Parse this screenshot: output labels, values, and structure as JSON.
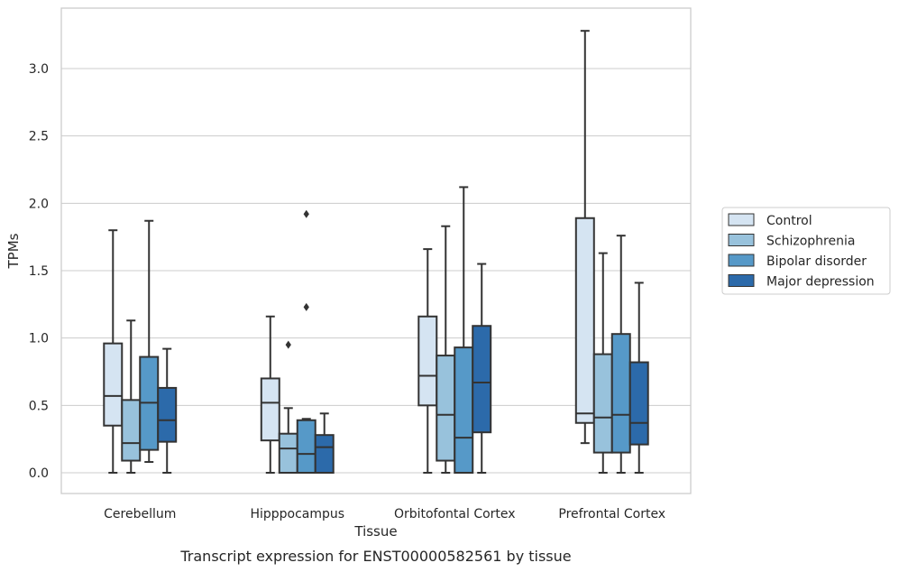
{
  "chart_data": {
    "type": "box",
    "title": "",
    "xlabel": "Tissue",
    "ylabel": "TPMs",
    "caption": "Transcript expression for ENST00000582561 by tissue",
    "ylim": [
      -0.16,
      3.46
    ],
    "yticks": [
      "0.0",
      "0.5",
      "1.0",
      "1.5",
      "2.0",
      "2.5",
      "3.0"
    ],
    "grid": true,
    "legend_position": "right-outside",
    "categories": [
      "Cerebellum",
      "Hipppocampus",
      "Orbitofontal Cortex",
      "Prefrontal Cortex"
    ],
    "series": [
      {
        "name": "Control",
        "color": "#d5e4f2",
        "boxes": [
          {
            "whislo": 0.0,
            "q1": 0.35,
            "med": 0.57,
            "q3": 0.96,
            "whishi": 1.8,
            "fliers": []
          },
          {
            "whislo": 0.0,
            "q1": 0.24,
            "med": 0.52,
            "q3": 0.7,
            "whishi": 1.16,
            "fliers": []
          },
          {
            "whislo": 0.0,
            "q1": 0.5,
            "med": 0.72,
            "q3": 1.16,
            "whishi": 1.66,
            "fliers": []
          },
          {
            "whislo": 0.22,
            "q1": 0.37,
            "med": 0.44,
            "q3": 1.89,
            "whishi": 3.28,
            "fliers": []
          }
        ]
      },
      {
        "name": "Schizophrenia",
        "color": "#98c2dc",
        "boxes": [
          {
            "whislo": 0.0,
            "q1": 0.09,
            "med": 0.22,
            "q3": 0.54,
            "whishi": 1.13,
            "fliers": []
          },
          {
            "whislo": 0.0,
            "q1": 0.0,
            "med": 0.18,
            "q3": 0.29,
            "whishi": 0.48,
            "fliers": [
              0.95
            ]
          },
          {
            "whislo": 0.0,
            "q1": 0.09,
            "med": 0.43,
            "q3": 0.87,
            "whishi": 1.83,
            "fliers": []
          },
          {
            "whislo": 0.0,
            "q1": 0.15,
            "med": 0.41,
            "q3": 0.88,
            "whishi": 1.63,
            "fliers": []
          }
        ]
      },
      {
        "name": "Bipolar disorder",
        "color": "#5699c8",
        "boxes": [
          {
            "whislo": 0.08,
            "q1": 0.17,
            "med": 0.52,
            "q3": 0.86,
            "whishi": 1.87,
            "fliers": []
          },
          {
            "whislo": 0.0,
            "q1": 0.0,
            "med": 0.14,
            "q3": 0.39,
            "whishi": 0.4,
            "fliers": [
              1.23,
              1.92
            ]
          },
          {
            "whislo": 0.0,
            "q1": 0.0,
            "med": 0.26,
            "q3": 0.93,
            "whishi": 2.12,
            "fliers": []
          },
          {
            "whislo": 0.0,
            "q1": 0.15,
            "med": 0.43,
            "q3": 1.03,
            "whishi": 1.76,
            "fliers": []
          }
        ]
      },
      {
        "name": "Major depression",
        "color": "#2c6aaa",
        "boxes": [
          {
            "whislo": 0.0,
            "q1": 0.23,
            "med": 0.39,
            "q3": 0.63,
            "whishi": 0.92,
            "fliers": []
          },
          {
            "whislo": 0.0,
            "q1": 0.0,
            "med": 0.19,
            "q3": 0.28,
            "whishi": 0.44,
            "fliers": []
          },
          {
            "whislo": 0.0,
            "q1": 0.3,
            "med": 0.67,
            "q3": 1.09,
            "whishi": 1.55,
            "fliers": []
          },
          {
            "whislo": 0.0,
            "q1": 0.21,
            "med": 0.37,
            "q3": 0.82,
            "whishi": 1.41,
            "fliers": []
          }
        ]
      }
    ]
  }
}
